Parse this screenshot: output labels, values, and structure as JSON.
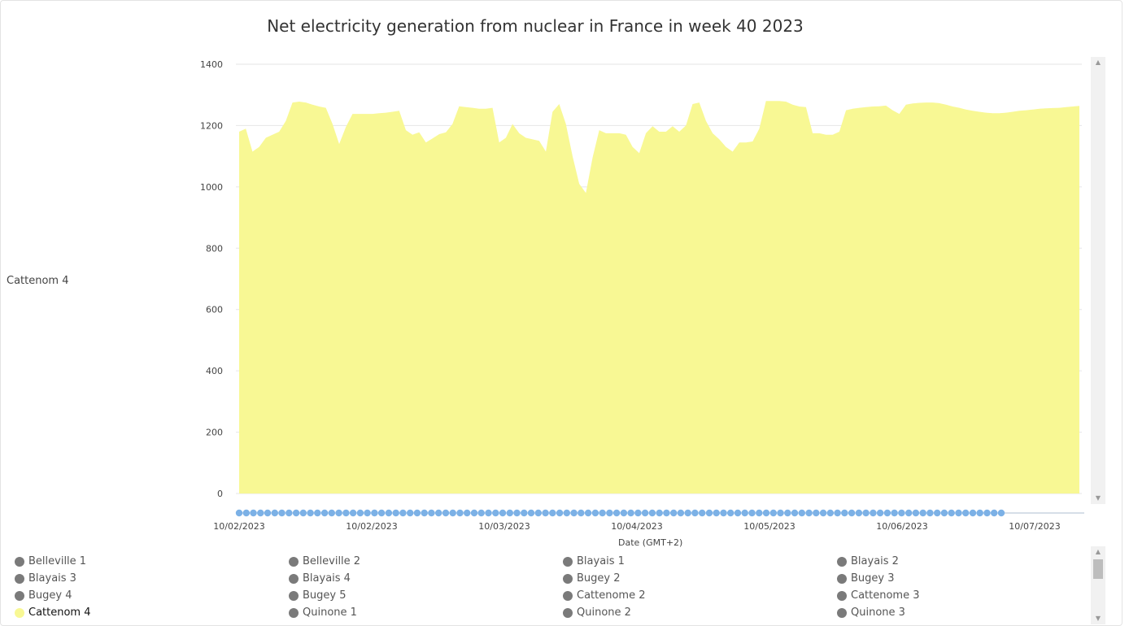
{
  "chart_data": {
    "type": "area",
    "title": "Net electricity generation from nuclear in France in week 40 2023",
    "ylabel": "Cattenom 4",
    "xlabel": "Date (GMT+2)",
    "ylim": [
      0,
      1400
    ],
    "yticks": [
      0,
      200,
      400,
      600,
      800,
      1000,
      1200,
      1400
    ],
    "xtick_labels": [
      "10/02/2023",
      "10/02/2023",
      "10/03/2023",
      "10/04/2023",
      "10/05/2023",
      "10/06/2023",
      "10/07/2023"
    ],
    "grid": true,
    "color": "#f8f894",
    "series": [
      {
        "name": "Cattenom 4",
        "values": [
          1180,
          1190,
          1115,
          1130,
          1160,
          1170,
          1180,
          1215,
          1275,
          1278,
          1275,
          1268,
          1262,
          1258,
          1205,
          1140,
          1195,
          1238,
          1238,
          1238,
          1238,
          1240,
          1242,
          1245,
          1248,
          1185,
          1170,
          1178,
          1145,
          1158,
          1172,
          1178,
          1205,
          1263,
          1260,
          1258,
          1255,
          1255,
          1258,
          1145,
          1160,
          1205,
          1175,
          1160,
          1155,
          1150,
          1115,
          1245,
          1270,
          1205,
          1100,
          1010,
          980,
          1095,
          1185,
          1175,
          1175,
          1175,
          1170,
          1130,
          1110,
          1175,
          1198,
          1180,
          1180,
          1198,
          1180,
          1200,
          1270,
          1275,
          1215,
          1175,
          1155,
          1130,
          1115,
          1145,
          1145,
          1148,
          1190,
          1280,
          1280,
          1280,
          1278,
          1268,
          1262,
          1260,
          1175,
          1175,
          1170,
          1170,
          1180,
          1250,
          1255,
          1258,
          1260,
          1262,
          1263,
          1265,
          1250,
          1238,
          1268,
          1272,
          1274,
          1275,
          1275,
          1273,
          1268,
          1262,
          1258,
          1252,
          1248,
          1245,
          1242,
          1240,
          1240,
          1242,
          1245,
          1248,
          1250,
          1252,
          1255,
          1256,
          1257,
          1258,
          1260,
          1262,
          1264
        ]
      }
    ]
  },
  "legend": {
    "items": [
      {
        "label": "Belleville 1",
        "active": false
      },
      {
        "label": "Belleville 2",
        "active": false
      },
      {
        "label": "Blayais 1",
        "active": false
      },
      {
        "label": "Blayais 2",
        "active": false
      },
      {
        "label": "Blayais 3",
        "active": false
      },
      {
        "label": "Blayais 4",
        "active": false
      },
      {
        "label": "Bugey 2",
        "active": false
      },
      {
        "label": "Bugey 3",
        "active": false
      },
      {
        "label": "Bugey 4",
        "active": false
      },
      {
        "label": "Bugey 5",
        "active": false
      },
      {
        "label": "Cattenome 2",
        "active": false
      },
      {
        "label": "Cattenome 3",
        "active": false
      },
      {
        "label": "Cattenom 4",
        "active": true
      },
      {
        "label": "Quinone 1",
        "active": false
      },
      {
        "label": "Quinone 2",
        "active": false
      },
      {
        "label": "Quinone 3",
        "active": false
      }
    ]
  },
  "scroll_arrows": {
    "up": "▲",
    "down": "▼"
  }
}
